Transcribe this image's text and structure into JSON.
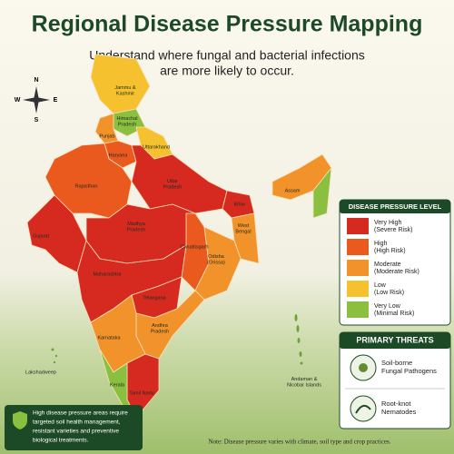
{
  "title": "Regional Disease Pressure Mapping",
  "subtitle": [
    "Understand where fungal and bacterial infections",
    "are more likely to occur."
  ],
  "compass": {
    "n": "N",
    "e": "E",
    "s": "S",
    "w": "W"
  },
  "regions": [
    {
      "label": [
        "Jammu &",
        "Kashmir"
      ]
    },
    {
      "label": [
        "Himachal",
        "Pradesh"
      ]
    },
    {
      "label": [
        "Punjab"
      ]
    },
    {
      "label": [
        "Uttarakhand"
      ]
    },
    {
      "label": [
        "Haryana"
      ]
    },
    {
      "label": [
        "Rajasthan"
      ]
    },
    {
      "label": [
        "Uttar",
        "Pradesh"
      ]
    },
    {
      "label": [
        "Bihar"
      ]
    },
    {
      "label": [
        "Assam"
      ]
    },
    {
      "label": [
        "West",
        "Bengal"
      ]
    },
    {
      "label": [
        "Gujarat"
      ]
    },
    {
      "label": [
        "Madhya",
        "Pradesh"
      ]
    },
    {
      "label": [
        "Chhattisgarh"
      ]
    },
    {
      "label": [
        "Odisha",
        "(Orissa)"
      ]
    },
    {
      "label": [
        "Maharashtra"
      ]
    },
    {
      "label": [
        "Telangana"
      ]
    },
    {
      "label": [
        "Andhra",
        "Pradesh"
      ]
    },
    {
      "label": [
        "Karnataka"
      ]
    },
    {
      "label": [
        "Tamil Nadu"
      ]
    },
    {
      "label": [
        "Kerala"
      ]
    },
    {
      "label": [
        "Lakshadweep"
      ]
    },
    {
      "label": [
        "Andaman &",
        "Nicobar Islands"
      ]
    }
  ],
  "legend": {
    "title": "DISEASE PRESSURE LEVEL",
    "items": [
      {
        "label": "Very High",
        "sublabel": "(Severe Risk)"
      },
      {
        "label": "High",
        "sublabel": "(High Risk)"
      },
      {
        "label": "Moderate",
        "sublabel": "(Moderate Risk)"
      },
      {
        "label": "Low",
        "sublabel": "(Low Risk)"
      },
      {
        "label": "Very Low",
        "sublabel": "(Minimal Risk)"
      }
    ]
  },
  "threats": {
    "title": "PRIMARY THREATS",
    "items": [
      [
        "Soil-borne",
        "Fungal Pathogens"
      ],
      [
        "Root-knot",
        "Nematodes"
      ]
    ]
  },
  "callout": [
    "High disease pressure areas require",
    "targeted soil health management,",
    "resistant varieties and preventive",
    "biological treatments."
  ],
  "note": "Note: Disease pressure varies with climate, soil type and crop practices."
}
